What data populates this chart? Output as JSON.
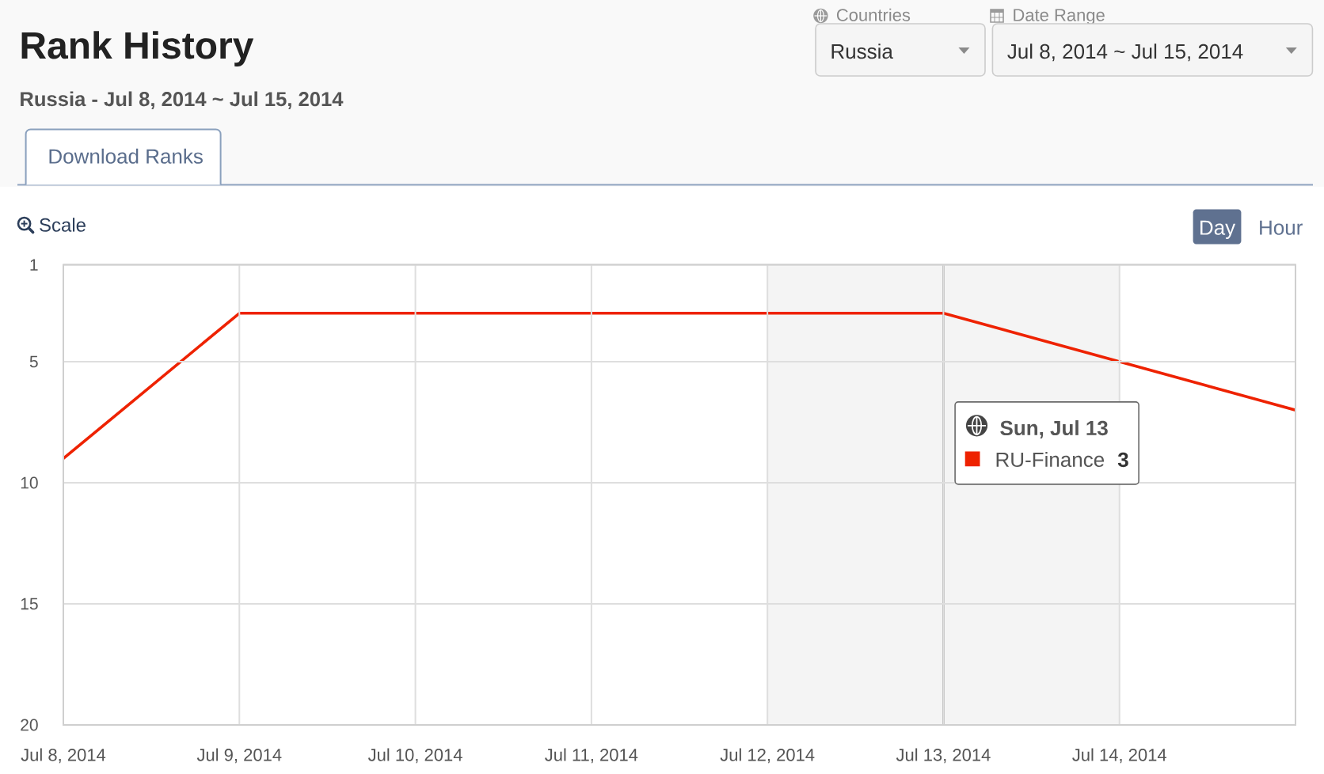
{
  "chart_data": {
    "type": "line",
    "title": "Rank History",
    "subtitle": "Russia - Jul 8, 2014 ~ Jul 15, 2014",
    "x": [
      "2014-07-08",
      "2014-07-09",
      "2014-07-10",
      "2014-07-11",
      "2014-07-12",
      "2014-07-13",
      "2014-07-14",
      "2014-07-15"
    ],
    "series": [
      {
        "name": "RU-Finance",
        "color": "#ee2200",
        "values": [
          9,
          3,
          3,
          3,
          3,
          3,
          5,
          7
        ]
      }
    ],
    "xlim": [
      "2014-07-08",
      "2014-07-15"
    ],
    "xticks": [
      {
        "value": "2014-07-08",
        "label": "Jul 8, 2014"
      },
      {
        "value": "2014-07-09",
        "label": "Jul 9, 2014"
      },
      {
        "value": "2014-07-10",
        "label": "Jul 10, 2014"
      },
      {
        "value": "2014-07-11",
        "label": "Jul 11, 2014"
      },
      {
        "value": "2014-07-12",
        "label": "Jul 12, 2014"
      },
      {
        "value": "2014-07-13",
        "label": "Jul 13, 2014"
      },
      {
        "value": "2014-07-14",
        "label": "Jul 14, 2014"
      }
    ],
    "ylim": [
      20,
      1
    ],
    "yticks": [
      1,
      5,
      10,
      15,
      20
    ],
    "grid": true,
    "legend": "right",
    "bands": [
      {
        "axis": "x",
        "from": "2014-07-12",
        "to": "2014-07-14",
        "color": "#f4f4f4"
      }
    ],
    "ref_lines": [
      {
        "axis": "x",
        "value": "2014-07-13",
        "color": "#6e6e6e"
      }
    ],
    "annotations": [
      "Countries",
      "Russia",
      "Date Range",
      "Jul 8, 2014 ~ Jul 15, 2014",
      "Download Ranks",
      "Scale",
      "Day",
      "Hour",
      "Sun, Jul 13",
      "3"
    ]
  }
}
